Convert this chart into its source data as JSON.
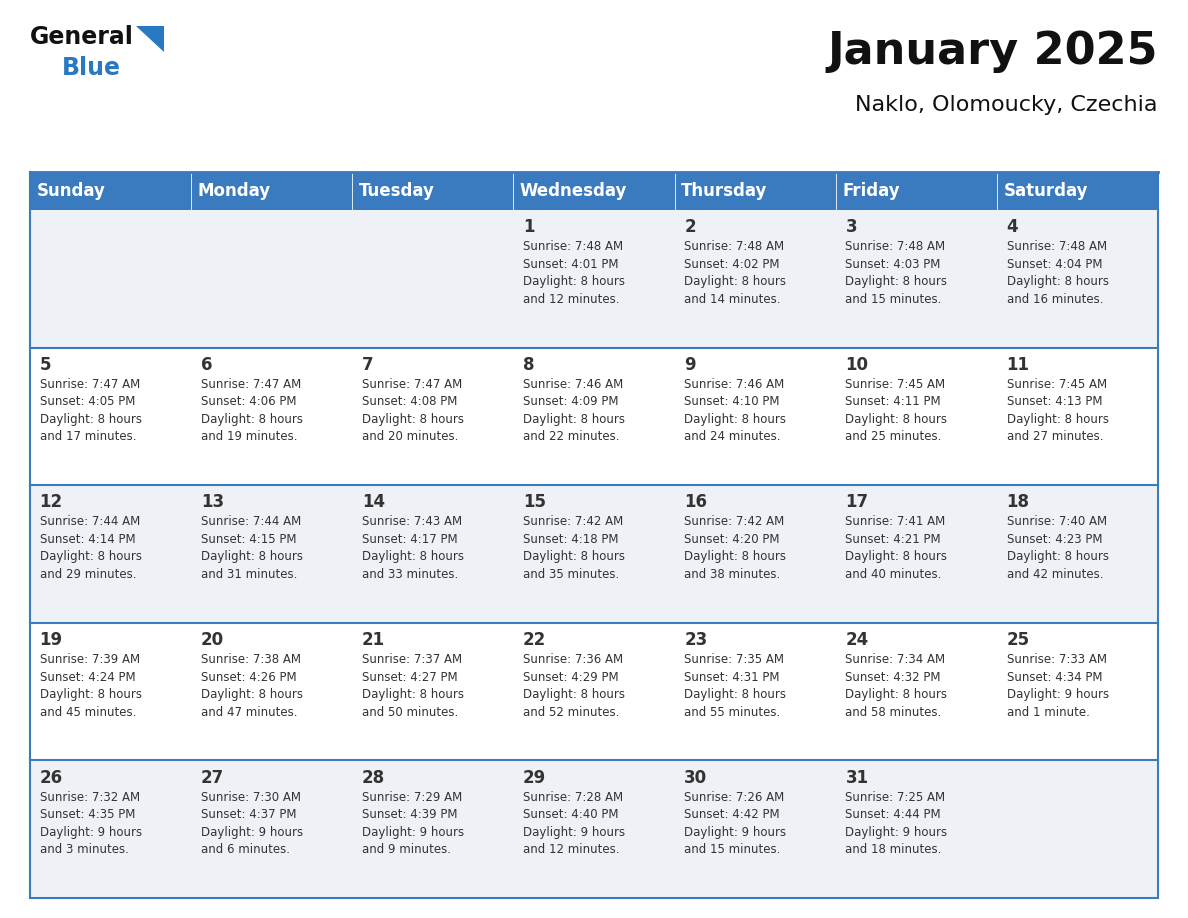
{
  "title": "January 2025",
  "subtitle": "Naklo, Olomoucky, Czechia",
  "days_of_week": [
    "Sunday",
    "Monday",
    "Tuesday",
    "Wednesday",
    "Thursday",
    "Friday",
    "Saturday"
  ],
  "header_bg": "#3a7abf",
  "header_text": "#ffffff",
  "cell_bg_light": "#eef2f7",
  "cell_bg_white": "#ffffff",
  "border_color": "#3a7abf",
  "row_divider_color": "#3a7abf",
  "text_color": "#333333",
  "title_color": "#111111",
  "logo_blue": "#2878c3",
  "logo_black": "#111111",
  "fig_width": 11.88,
  "fig_height": 9.18,
  "dpi": 100,
  "calendar_data": [
    [
      {
        "day": null,
        "info": null
      },
      {
        "day": null,
        "info": null
      },
      {
        "day": null,
        "info": null
      },
      {
        "day": 1,
        "info": "Sunrise: 7:48 AM\nSunset: 4:01 PM\nDaylight: 8 hours\nand 12 minutes."
      },
      {
        "day": 2,
        "info": "Sunrise: 7:48 AM\nSunset: 4:02 PM\nDaylight: 8 hours\nand 14 minutes."
      },
      {
        "day": 3,
        "info": "Sunrise: 7:48 AM\nSunset: 4:03 PM\nDaylight: 8 hours\nand 15 minutes."
      },
      {
        "day": 4,
        "info": "Sunrise: 7:48 AM\nSunset: 4:04 PM\nDaylight: 8 hours\nand 16 minutes."
      }
    ],
    [
      {
        "day": 5,
        "info": "Sunrise: 7:47 AM\nSunset: 4:05 PM\nDaylight: 8 hours\nand 17 minutes."
      },
      {
        "day": 6,
        "info": "Sunrise: 7:47 AM\nSunset: 4:06 PM\nDaylight: 8 hours\nand 19 minutes."
      },
      {
        "day": 7,
        "info": "Sunrise: 7:47 AM\nSunset: 4:08 PM\nDaylight: 8 hours\nand 20 minutes."
      },
      {
        "day": 8,
        "info": "Sunrise: 7:46 AM\nSunset: 4:09 PM\nDaylight: 8 hours\nand 22 minutes."
      },
      {
        "day": 9,
        "info": "Sunrise: 7:46 AM\nSunset: 4:10 PM\nDaylight: 8 hours\nand 24 minutes."
      },
      {
        "day": 10,
        "info": "Sunrise: 7:45 AM\nSunset: 4:11 PM\nDaylight: 8 hours\nand 25 minutes."
      },
      {
        "day": 11,
        "info": "Sunrise: 7:45 AM\nSunset: 4:13 PM\nDaylight: 8 hours\nand 27 minutes."
      }
    ],
    [
      {
        "day": 12,
        "info": "Sunrise: 7:44 AM\nSunset: 4:14 PM\nDaylight: 8 hours\nand 29 minutes."
      },
      {
        "day": 13,
        "info": "Sunrise: 7:44 AM\nSunset: 4:15 PM\nDaylight: 8 hours\nand 31 minutes."
      },
      {
        "day": 14,
        "info": "Sunrise: 7:43 AM\nSunset: 4:17 PM\nDaylight: 8 hours\nand 33 minutes."
      },
      {
        "day": 15,
        "info": "Sunrise: 7:42 AM\nSunset: 4:18 PM\nDaylight: 8 hours\nand 35 minutes."
      },
      {
        "day": 16,
        "info": "Sunrise: 7:42 AM\nSunset: 4:20 PM\nDaylight: 8 hours\nand 38 minutes."
      },
      {
        "day": 17,
        "info": "Sunrise: 7:41 AM\nSunset: 4:21 PM\nDaylight: 8 hours\nand 40 minutes."
      },
      {
        "day": 18,
        "info": "Sunrise: 7:40 AM\nSunset: 4:23 PM\nDaylight: 8 hours\nand 42 minutes."
      }
    ],
    [
      {
        "day": 19,
        "info": "Sunrise: 7:39 AM\nSunset: 4:24 PM\nDaylight: 8 hours\nand 45 minutes."
      },
      {
        "day": 20,
        "info": "Sunrise: 7:38 AM\nSunset: 4:26 PM\nDaylight: 8 hours\nand 47 minutes."
      },
      {
        "day": 21,
        "info": "Sunrise: 7:37 AM\nSunset: 4:27 PM\nDaylight: 8 hours\nand 50 minutes."
      },
      {
        "day": 22,
        "info": "Sunrise: 7:36 AM\nSunset: 4:29 PM\nDaylight: 8 hours\nand 52 minutes."
      },
      {
        "day": 23,
        "info": "Sunrise: 7:35 AM\nSunset: 4:31 PM\nDaylight: 8 hours\nand 55 minutes."
      },
      {
        "day": 24,
        "info": "Sunrise: 7:34 AM\nSunset: 4:32 PM\nDaylight: 8 hours\nand 58 minutes."
      },
      {
        "day": 25,
        "info": "Sunrise: 7:33 AM\nSunset: 4:34 PM\nDaylight: 9 hours\nand 1 minute."
      }
    ],
    [
      {
        "day": 26,
        "info": "Sunrise: 7:32 AM\nSunset: 4:35 PM\nDaylight: 9 hours\nand 3 minutes."
      },
      {
        "day": 27,
        "info": "Sunrise: 7:30 AM\nSunset: 4:37 PM\nDaylight: 9 hours\nand 6 minutes."
      },
      {
        "day": 28,
        "info": "Sunrise: 7:29 AM\nSunset: 4:39 PM\nDaylight: 9 hours\nand 9 minutes."
      },
      {
        "day": 29,
        "info": "Sunrise: 7:28 AM\nSunset: 4:40 PM\nDaylight: 9 hours\nand 12 minutes."
      },
      {
        "day": 30,
        "info": "Sunrise: 7:26 AM\nSunset: 4:42 PM\nDaylight: 9 hours\nand 15 minutes."
      },
      {
        "day": 31,
        "info": "Sunrise: 7:25 AM\nSunset: 4:44 PM\nDaylight: 9 hours\nand 18 minutes."
      },
      {
        "day": null,
        "info": null
      }
    ]
  ]
}
